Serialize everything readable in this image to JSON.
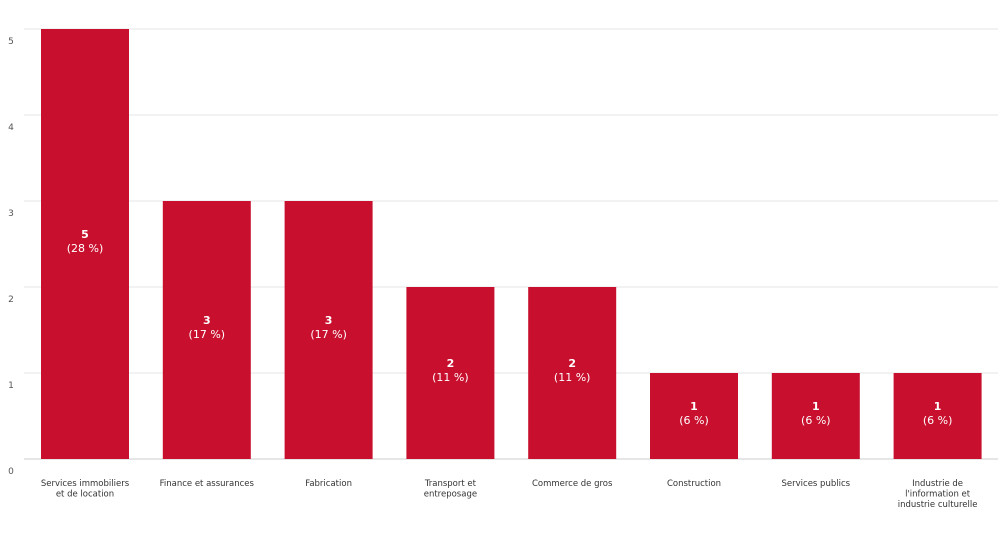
{
  "chart_data": {
    "type": "bar",
    "categories": [
      [
        "Services immobiliers",
        "et de location"
      ],
      [
        "Finance et assurances"
      ],
      [
        "Fabrication"
      ],
      [
        "Transport et",
        "entreposage"
      ],
      [
        "Commerce de gros"
      ],
      [
        "Construction"
      ],
      [
        "Services publics"
      ],
      [
        "Industrie de",
        "l'information et",
        "industrie culturelle"
      ]
    ],
    "values": [
      5,
      3,
      3,
      2,
      2,
      1,
      1,
      1
    ],
    "value_labels": [
      "5",
      "3",
      "3",
      "2",
      "2",
      "1",
      "1",
      "1"
    ],
    "percent_labels": [
      "(28 %)",
      "(17 %)",
      "(17 %)",
      "(11 %)",
      "(11 %)",
      "(6 %)",
      "(6 %)",
      "(6 %)"
    ],
    "ylim": [
      0,
      5
    ],
    "y_ticks": [
      "0",
      "1",
      "2",
      "3",
      "4",
      "5"
    ],
    "grid": true,
    "bar_color": "#c8102e",
    "grid_color": "#e6e6e6"
  }
}
